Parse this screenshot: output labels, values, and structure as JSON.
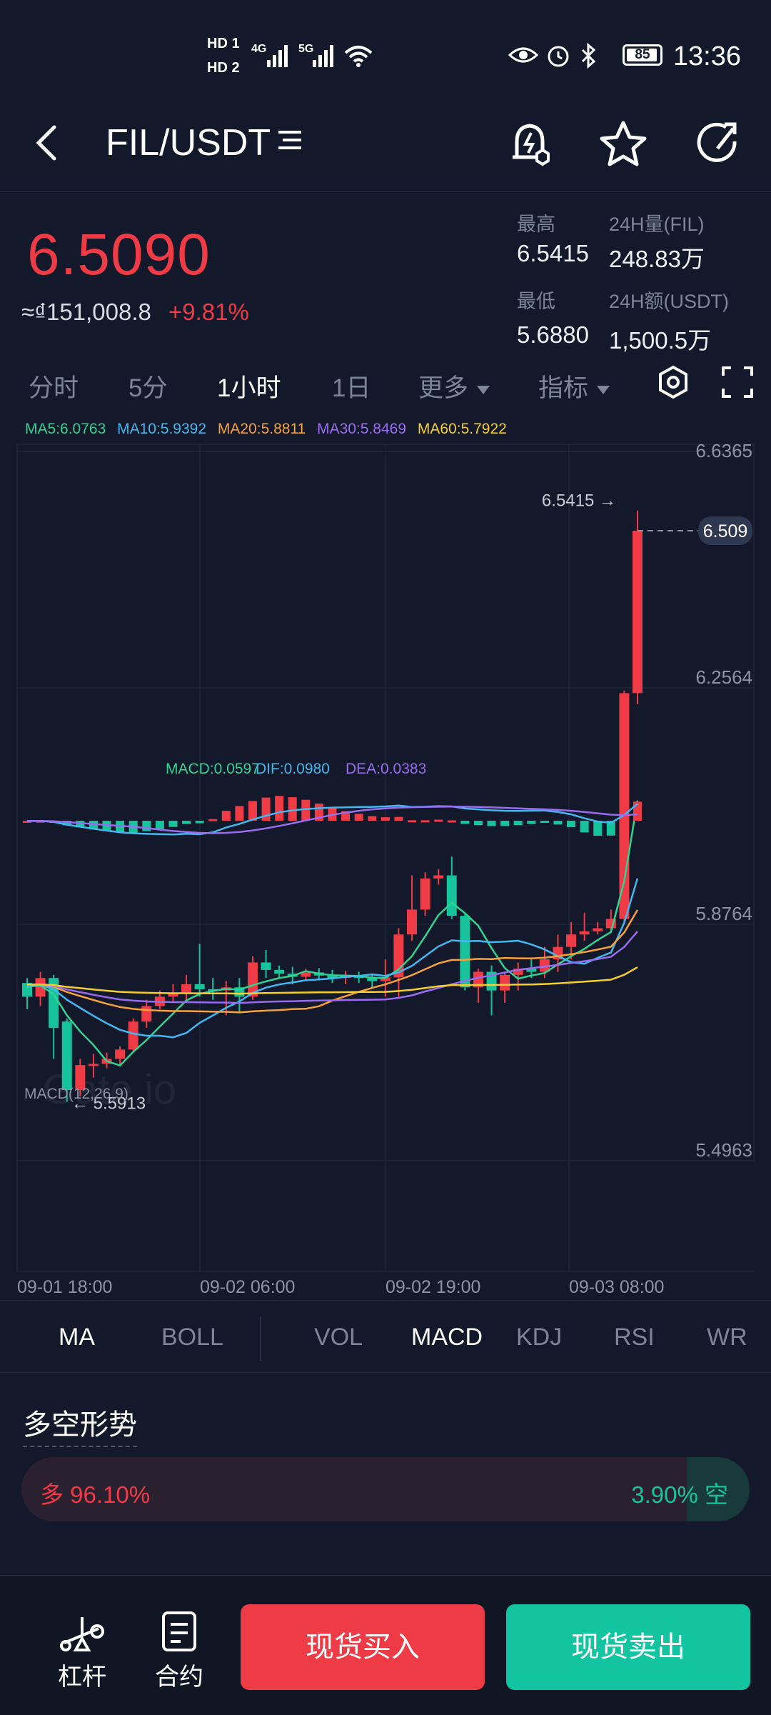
{
  "status_bar": {
    "hd1": "HD 1",
    "hd2": "HD 2",
    "net1": "4G",
    "net2": "5G",
    "battery": "85",
    "time": "13:36"
  },
  "header": {
    "title": "FIL/USDT",
    "icons": [
      "back-icon",
      "menu-icon",
      "alert-bell-icon",
      "star-icon",
      "refresh-icon"
    ]
  },
  "price": {
    "last": "6.5090",
    "approx": "≈₫151,008.8",
    "change": "+9.81%"
  },
  "stats": {
    "high_label": "最高",
    "high_value": "6.5415",
    "vol_label": "24H量(FIL)",
    "vol_value": "248.83万",
    "low_label": "最低",
    "low_value": "5.6880",
    "amt_label": "24H额(USDT)",
    "amt_value": "1,500.5万"
  },
  "timeframes": {
    "t1": "分时",
    "t2": "5分",
    "t3": "1小时",
    "t4": "1日",
    "more": "更多",
    "indicator": "指标",
    "active": "1小时"
  },
  "ma_legend": {
    "ma5": "MA5:6.0763",
    "ma10": "MA10:5.9392",
    "ma20": "MA20:5.8811",
    "ma30": "MA30:5.8469",
    "ma60": "MA60:5.7922"
  },
  "colors": {
    "up": "#ee3b46",
    "down": "#16c39a",
    "ma5": "#2fd492",
    "ma10": "#42b8f0",
    "ma20": "#f7a13a",
    "ma30": "#9a6cf0",
    "ma60": "#f5cf2d",
    "grid": "#232b3d"
  },
  "chart_data": {
    "type": "candlestick",
    "y_ticks": [
      "6.6365",
      "6.2564",
      "5.8764",
      "5.4963"
    ],
    "ylim": [
      5.4963,
      6.6365
    ],
    "x_ticks": [
      "09-01 18:00",
      "09-02 06:00",
      "09-02 19:00",
      "09-03 08:00"
    ],
    "current_price_label": "6.509",
    "high_marker": "6.5415",
    "low_marker": "5.5913",
    "watermark": "Gate.io",
    "candles": [
      [
        5.782,
        5.76,
        5.79,
        5.74
      ],
      [
        5.76,
        5.79,
        5.8,
        5.745
      ],
      [
        5.79,
        5.71,
        5.795,
        5.66
      ],
      [
        5.72,
        5.61,
        5.725,
        5.591
      ],
      [
        5.61,
        5.65,
        5.66,
        5.6
      ],
      [
        5.65,
        5.652,
        5.668,
        5.63
      ],
      [
        5.652,
        5.66,
        5.67,
        5.645
      ],
      [
        5.66,
        5.675,
        5.68,
        5.65
      ],
      [
        5.675,
        5.72,
        5.725,
        5.67
      ],
      [
        5.72,
        5.745,
        5.755,
        5.71
      ],
      [
        5.745,
        5.76,
        5.77,
        5.74
      ],
      [
        5.76,
        5.765,
        5.78,
        5.75
      ],
      [
        5.765,
        5.78,
        5.795,
        5.755
      ],
      [
        5.78,
        5.772,
        5.845,
        5.76
      ],
      [
        5.772,
        5.77,
        5.79,
        5.755
      ],
      [
        5.77,
        5.775,
        5.785,
        5.73
      ],
      [
        5.775,
        5.76,
        5.79,
        5.735
      ],
      [
        5.76,
        5.815,
        5.825,
        5.755
      ],
      [
        5.815,
        5.803,
        5.835,
        5.79
      ],
      [
        5.803,
        5.797,
        5.81,
        5.79
      ],
      [
        5.797,
        5.792,
        5.808,
        5.78
      ],
      [
        5.792,
        5.799,
        5.805,
        5.785
      ],
      [
        5.799,
        5.794,
        5.806,
        5.789
      ],
      [
        5.794,
        5.79,
        5.803,
        5.782
      ],
      [
        5.79,
        5.794,
        5.802,
        5.78
      ],
      [
        5.794,
        5.79,
        5.8,
        5.782
      ],
      [
        5.79,
        5.785,
        5.795,
        5.775
      ],
      [
        5.785,
        5.791,
        5.82,
        5.76
      ],
      [
        5.791,
        5.86,
        5.87,
        5.76
      ],
      [
        5.86,
        5.9,
        5.955,
        5.85
      ],
      [
        5.9,
        5.95,
        5.96,
        5.89
      ],
      [
        5.95,
        5.955,
        5.965,
        5.94
      ],
      [
        5.955,
        5.89,
        5.985,
        5.885
      ],
      [
        5.89,
        5.775,
        5.895,
        5.77
      ],
      [
        5.775,
        5.8,
        5.805,
        5.75
      ],
      [
        5.8,
        5.77,
        5.81,
        5.73
      ],
      [
        5.77,
        5.795,
        5.8,
        5.75
      ],
      [
        5.795,
        5.805,
        5.815,
        5.77
      ],
      [
        5.805,
        5.8,
        5.82,
        5.79
      ],
      [
        5.8,
        5.82,
        5.84,
        5.79
      ],
      [
        5.82,
        5.84,
        5.86,
        5.8
      ],
      [
        5.84,
        5.86,
        5.88,
        5.82
      ],
      [
        5.86,
        5.865,
        5.895,
        5.85
      ],
      [
        5.865,
        5.87,
        5.88,
        5.86
      ],
      [
        5.87,
        5.885,
        5.9,
        5.865
      ],
      [
        5.885,
        6.248,
        6.252,
        5.88
      ],
      [
        6.248,
        6.509,
        6.5415,
        6.23
      ]
    ],
    "indicator": {
      "label": "MACD(12,26,9)",
      "macd": "MACD:0.0597",
      "dif": "DIF:0.0980",
      "dea": "DEA:0.0383"
    }
  },
  "indicator_tabs": {
    "ma": "MA",
    "boll": "BOLL",
    "vol": "VOL",
    "macd": "MACD",
    "kdj": "KDJ",
    "rsi": "RSI",
    "wr": "WR"
  },
  "sentiment": {
    "title": "多空形势",
    "long_label": "多 96.10%",
    "short_label": "3.90% 空",
    "long_pct": 96.1,
    "short_pct": 3.9
  },
  "bottom_nav": {
    "leverage": "杠杆",
    "contract": "合约",
    "buy": "现货买入",
    "sell": "现货卖出"
  }
}
